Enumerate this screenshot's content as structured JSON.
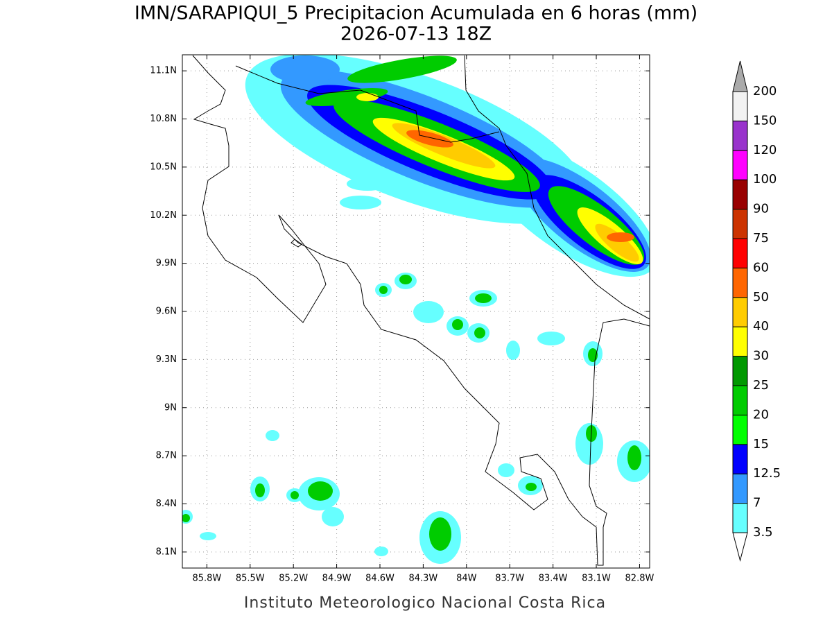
{
  "title": "IMN/SARAPIQUI_5 Precipitacion Acumulada en 6 horas (mm)",
  "subtitle": "2026-07-13 18Z",
  "footer": "Instituto Meteorologico Nacional Costa Rica",
  "map": {
    "grid": true,
    "lat_range": [
      8.0,
      11.2
    ],
    "lon_range": [
      85.97,
      82.73
    ],
    "lat_ticks": [
      {
        "value": 11.1,
        "label": "11.1N"
      },
      {
        "value": 10.8,
        "label": "10.8N"
      },
      {
        "value": 10.5,
        "label": "10.5N"
      },
      {
        "value": 10.2,
        "label": "10.2N"
      },
      {
        "value": 9.9,
        "label": "9.9N"
      },
      {
        "value": 9.6,
        "label": "9.6N"
      },
      {
        "value": 9.3,
        "label": "9.3N"
      },
      {
        "value": 9,
        "label": "9N"
      },
      {
        "value": 8.7,
        "label": "8.7N"
      },
      {
        "value": 8.4,
        "label": "8.4N"
      },
      {
        "value": 8.1,
        "label": "8.1N"
      }
    ],
    "lon_ticks": [
      {
        "value": 85.8,
        "label": "85.8W"
      },
      {
        "value": 85.5,
        "label": "85.5W"
      },
      {
        "value": 85.2,
        "label": "85.2W"
      },
      {
        "value": 84.9,
        "label": "84.9W"
      },
      {
        "value": 84.6,
        "label": "84.6W"
      },
      {
        "value": 84.3,
        "label": "84.3W"
      },
      {
        "value": 84,
        "label": "84W"
      },
      {
        "value": 83.7,
        "label": "83.7W"
      },
      {
        "value": 83.4,
        "label": "83.4W"
      },
      {
        "value": 83.1,
        "label": "83.1W"
      },
      {
        "value": 82.8,
        "label": "82.8W"
      }
    ]
  },
  "legend": {
    "levels": [
      3.5,
      7,
      12.5,
      15,
      20,
      25,
      30,
      40,
      50,
      60,
      75,
      90,
      100,
      120,
      150,
      200
    ],
    "colors": [
      "#ffffff",
      "#66ffff",
      "#3399ff",
      "#0000ff",
      "#00ff00",
      "#00cc00",
      "#009900",
      "#ffff00",
      "#ffcc00",
      "#ff6600",
      "#ff0000",
      "#cc3300",
      "#990000",
      "#ff00ff",
      "#9933cc",
      "#f2f2f2",
      "#aaaaaa"
    ]
  }
}
